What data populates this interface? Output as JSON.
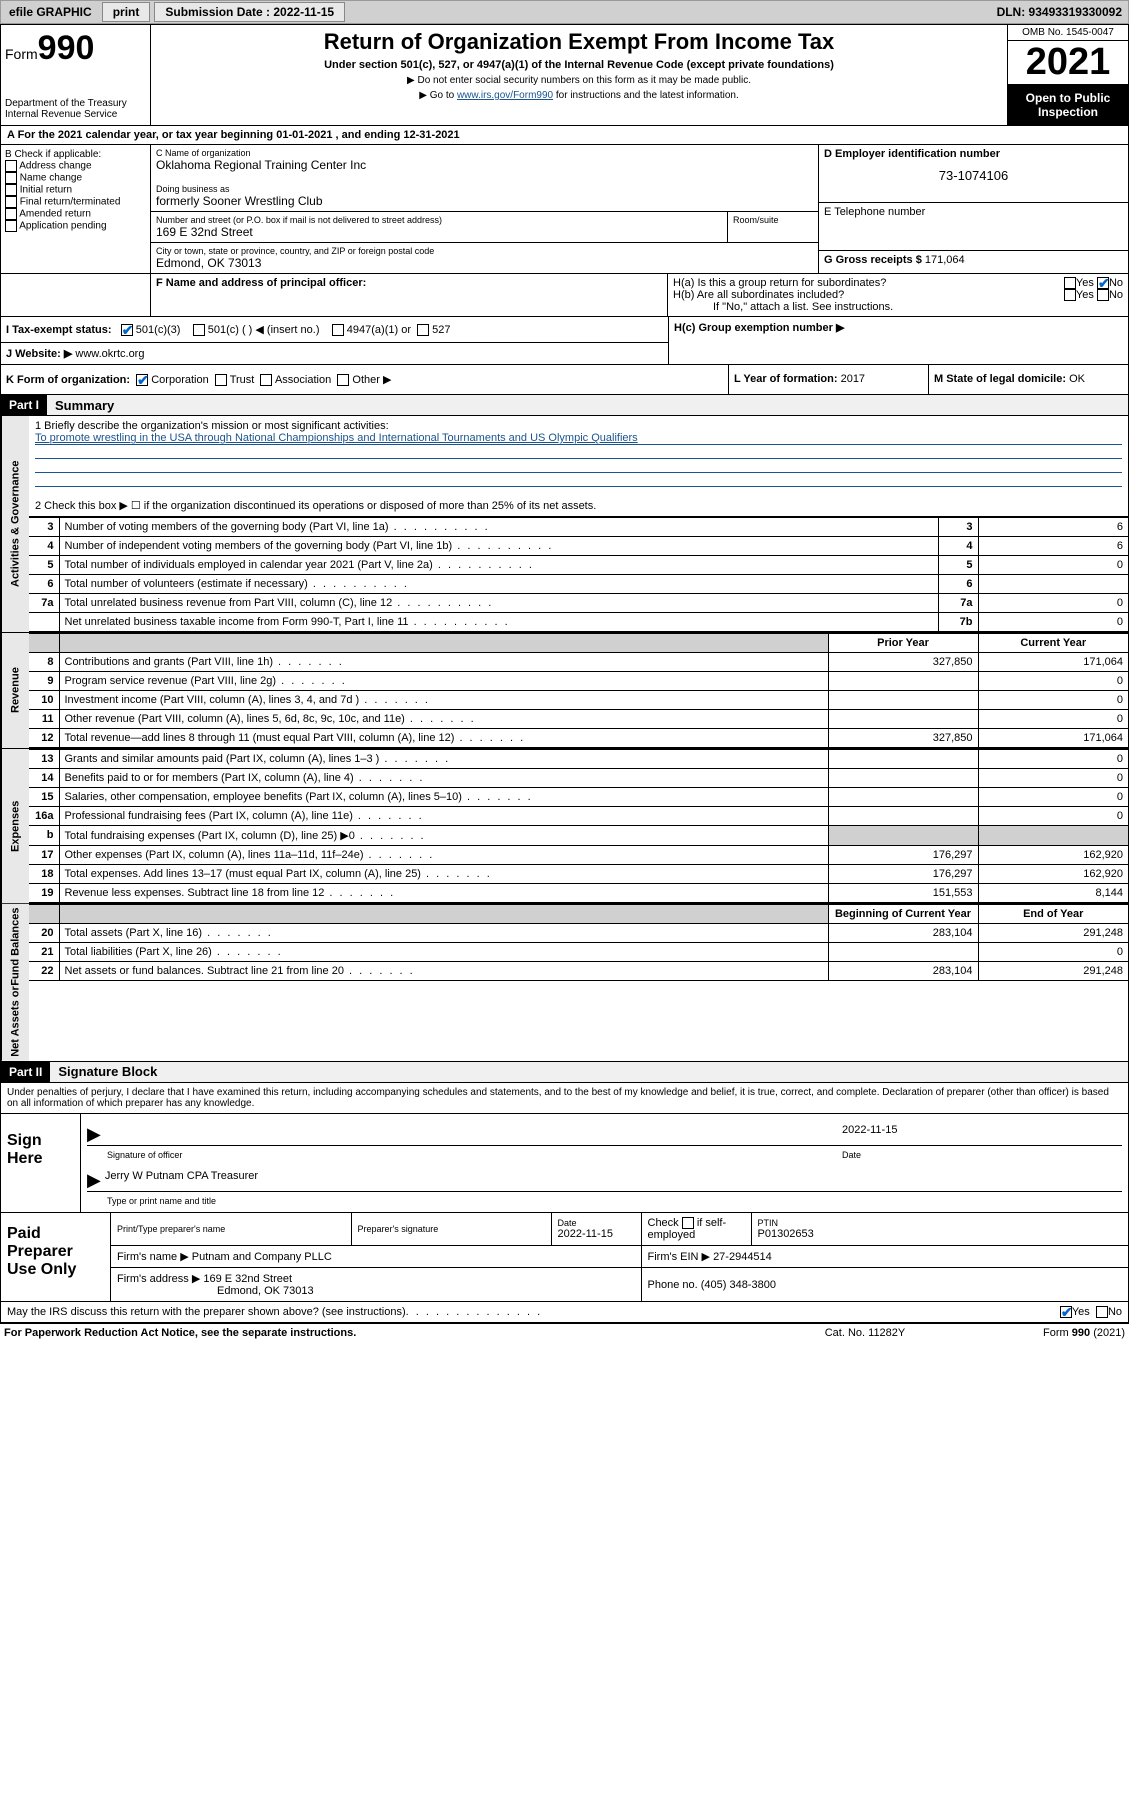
{
  "topbar": {
    "efile": "efile GRAPHIC",
    "print": "print",
    "sub_label": "Submission Date : 2022-11-15",
    "dln": "DLN: 93493319330092"
  },
  "header": {
    "form_word": "Form",
    "form_num": "990",
    "dept": "Department of the Treasury",
    "irs": "Internal Revenue Service",
    "title": "Return of Organization Exempt From Income Tax",
    "sub": "Under section 501(c), 527, or 4947(a)(1) of the Internal Revenue Code (except private foundations)",
    "note1": "▶ Do not enter social security numbers on this form as it may be made public.",
    "note2_pre": "▶ Go to ",
    "note2_link": "www.irs.gov/Form990",
    "note2_post": " for instructions and the latest information.",
    "omb": "OMB No. 1545-0047",
    "year": "2021",
    "open": "Open to Public Inspection"
  },
  "sectionA": {
    "text_pre": "A For the 2021 calendar year, or tax year beginning ",
    "begin": "01-01-2021",
    "mid": " , and ending ",
    "end": "12-31-2021"
  },
  "blockB": {
    "title": "B Check if applicable:",
    "items": [
      "Address change",
      "Name change",
      "Initial return",
      "Final return/terminated",
      "Amended return",
      "Application pending"
    ]
  },
  "blockC": {
    "name_label": "C Name of organization",
    "name": "Oklahoma Regional Training Center Inc",
    "dba_label": "Doing business as",
    "dba": "formerly Sooner Wrestling Club",
    "addr_label": "Number and street (or P.O. box if mail is not delivered to street address)",
    "room_label": "Room/suite",
    "addr": "169 E 32nd Street",
    "city_label": "City or town, state or province, country, and ZIP or foreign postal code",
    "city": "Edmond, OK  73013"
  },
  "blockD": {
    "label": "D Employer identification number",
    "ein": "73-1074106",
    "e_label": "E Telephone number",
    "g_label": "G Gross receipts $",
    "g_val": "171,064"
  },
  "blockF": {
    "label": "F Name and address of principal officer:"
  },
  "blockH": {
    "ha": "H(a) Is this a group return for subordinates?",
    "hb": "H(b) Are all subordinates included?",
    "hb_note": "If \"No,\" attach a list. See instructions.",
    "hc": "H(c) Group exemption number ▶",
    "yes": "Yes",
    "no": "No"
  },
  "blockI": {
    "label": "I   Tax-exempt status:",
    "opt1": "501(c)(3)",
    "opt2": "501(c) (   ) ◀ (insert no.)",
    "opt3": "4947(a)(1) or",
    "opt4": "527"
  },
  "blockJ": {
    "label": "J   Website: ▶",
    "val": "www.okrtc.org"
  },
  "blockK": {
    "label": "K Form of organization:",
    "corp": "Corporation",
    "trust": "Trust",
    "assoc": "Association",
    "other": "Other ▶"
  },
  "blockL": {
    "label": "L Year of formation:",
    "val": "2017"
  },
  "blockM": {
    "label": "M State of legal domicile:",
    "val": "OK"
  },
  "part1": {
    "header": "Part I",
    "title": "Summary",
    "line1_label": "1  Briefly describe the organization's mission or most significant activities:",
    "line1_val": "To promote wrestling in the USA through National Championships and International Tournaments and US Olympic Qualifiers",
    "line2": "2   Check this box ▶ ☐  if the organization discontinued its operations or disposed of more than 25% of its net assets.",
    "rows_gov": [
      {
        "n": "3",
        "d": "Number of voting members of the governing body (Part VI, line 1a)",
        "box": "3",
        "v": "6"
      },
      {
        "n": "4",
        "d": "Number of independent voting members of the governing body (Part VI, line 1b)",
        "box": "4",
        "v": "6"
      },
      {
        "n": "5",
        "d": "Total number of individuals employed in calendar year 2021 (Part V, line 2a)",
        "box": "5",
        "v": "0"
      },
      {
        "n": "6",
        "d": "Total number of volunteers (estimate if necessary)",
        "box": "6",
        "v": ""
      },
      {
        "n": "7a",
        "d": "Total unrelated business revenue from Part VIII, column (C), line 12",
        "box": "7a",
        "v": "0"
      },
      {
        "n": "",
        "d": "Net unrelated business taxable income from Form 990-T, Part I, line 11",
        "box": "7b",
        "v": "0"
      }
    ],
    "col_prior": "Prior Year",
    "col_curr": "Current Year",
    "rows_rev": [
      {
        "n": "8",
        "d": "Contributions and grants (Part VIII, line 1h)",
        "p": "327,850",
        "c": "171,064"
      },
      {
        "n": "9",
        "d": "Program service revenue (Part VIII, line 2g)",
        "p": "",
        "c": "0"
      },
      {
        "n": "10",
        "d": "Investment income (Part VIII, column (A), lines 3, 4, and 7d )",
        "p": "",
        "c": "0"
      },
      {
        "n": "11",
        "d": "Other revenue (Part VIII, column (A), lines 5, 6d, 8c, 9c, 10c, and 11e)",
        "p": "",
        "c": "0"
      },
      {
        "n": "12",
        "d": "Total revenue—add lines 8 through 11 (must equal Part VIII, column (A), line 12)",
        "p": "327,850",
        "c": "171,064"
      }
    ],
    "rows_exp": [
      {
        "n": "13",
        "d": "Grants and similar amounts paid (Part IX, column (A), lines 1–3 )",
        "p": "",
        "c": "0"
      },
      {
        "n": "14",
        "d": "Benefits paid to or for members (Part IX, column (A), line 4)",
        "p": "",
        "c": "0"
      },
      {
        "n": "15",
        "d": "Salaries, other compensation, employee benefits (Part IX, column (A), lines 5–10)",
        "p": "",
        "c": "0"
      },
      {
        "n": "16a",
        "d": "Professional fundraising fees (Part IX, column (A), line 11e)",
        "p": "",
        "c": "0"
      },
      {
        "n": "b",
        "d": "Total fundraising expenses (Part IX, column (D), line 25) ▶0",
        "p": "shade",
        "c": "shade"
      },
      {
        "n": "17",
        "d": "Other expenses (Part IX, column (A), lines 11a–11d, 11f–24e)",
        "p": "176,297",
        "c": "162,920"
      },
      {
        "n": "18",
        "d": "Total expenses. Add lines 13–17 (must equal Part IX, column (A), line 25)",
        "p": "176,297",
        "c": "162,920"
      },
      {
        "n": "19",
        "d": "Revenue less expenses. Subtract line 18 from line 12",
        "p": "151,553",
        "c": "8,144"
      }
    ],
    "col_begin": "Beginning of Current Year",
    "col_end": "End of Year",
    "rows_net": [
      {
        "n": "20",
        "d": "Total assets (Part X, line 16)",
        "p": "283,104",
        "c": "291,248"
      },
      {
        "n": "21",
        "d": "Total liabilities (Part X, line 26)",
        "p": "",
        "c": "0"
      },
      {
        "n": "22",
        "d": "Net assets or fund balances. Subtract line 21 from line 20",
        "p": "283,104",
        "c": "291,248"
      }
    ],
    "vert_gov": "Activities & Governance",
    "vert_rev": "Revenue",
    "vert_exp": "Expenses",
    "vert_net1": "Net Assets or",
    "vert_net2": "Fund Balances"
  },
  "part2": {
    "header": "Part II",
    "title": "Signature Block",
    "decl": "Under penalties of perjury, I declare that I have examined this return, including accompanying schedules and statements, and to the best of my knowledge and belief, it is true, correct, and complete. Declaration of preparer (other than officer) is based on all information of which preparer has any knowledge."
  },
  "sign": {
    "here": "Sign Here",
    "sig_label": "Signature of officer",
    "date_label": "Date",
    "date": "2022-11-15",
    "name": "Jerry W Putnam CPA  Treasurer",
    "name_label": "Type or print name and title"
  },
  "prep": {
    "title": "Paid Preparer Use Only",
    "col1": "Print/Type preparer's name",
    "col2": "Preparer's signature",
    "col3": "Date",
    "date": "2022-11-15",
    "col4_pre": "Check",
    "col4_post": "if self-employed",
    "col5": "PTIN",
    "ptin": "P01302653",
    "firm_label": "Firm's name    ▶",
    "firm": "Putnam and Company PLLC",
    "ein_label": "Firm's EIN ▶",
    "ein": "27-2944514",
    "addr_label": "Firm's address ▶",
    "addr1": "169 E 32nd Street",
    "addr2": "Edmond, OK  73013",
    "phone_label": "Phone no.",
    "phone": "(405) 348-3800"
  },
  "bottom": {
    "q": "May the IRS discuss this return with the preparer shown above? (see instructions)",
    "yes": "Yes",
    "no": "No"
  },
  "footer": {
    "left": "For Paperwork Reduction Act Notice, see the separate instructions.",
    "mid": "Cat. No. 11282Y",
    "right": "Form 990 (2021)"
  },
  "colors": {
    "link": "#1a5490",
    "shade": "#d0d0d0",
    "black": "#000000"
  }
}
